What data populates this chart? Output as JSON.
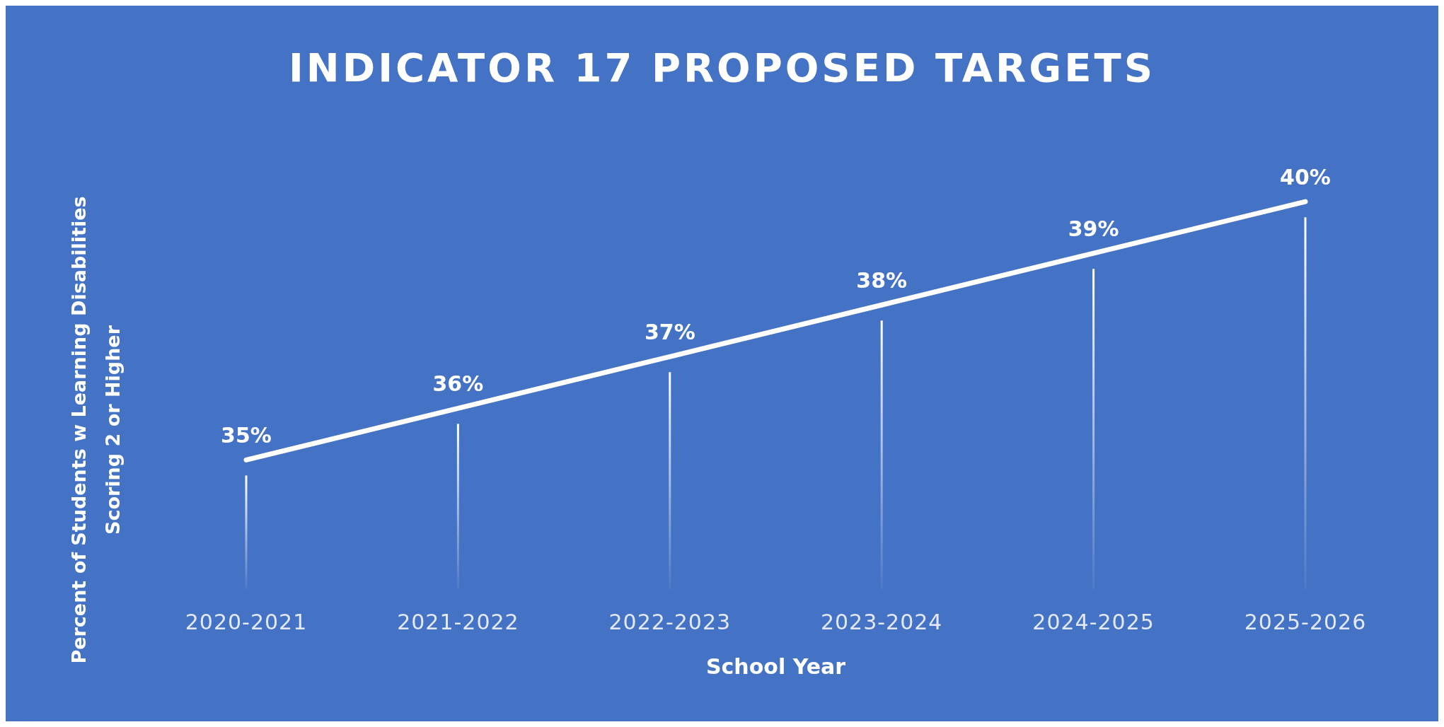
{
  "chart_data": {
    "type": "line",
    "title": "INDICATOR 17 PROPOSED TARGETS",
    "xlabel": "School Year",
    "ylabel": "Percent of Students  w Learning Disabilities\nScoring 2 or Higher",
    "categories": [
      "2020-2021",
      "2021-2022",
      "2022-2023",
      "2023-2024",
      "2024-2025",
      "2025-2026"
    ],
    "series": [
      {
        "color": "#ffffff",
        "values": [
          35,
          36,
          37,
          38,
          39,
          40
        ],
        "value_labels": [
          "35%",
          "36%",
          "37%",
          "38%",
          "39%",
          "40%"
        ]
      }
    ],
    "tick_labels": "x",
    "grid": "x"
  }
}
